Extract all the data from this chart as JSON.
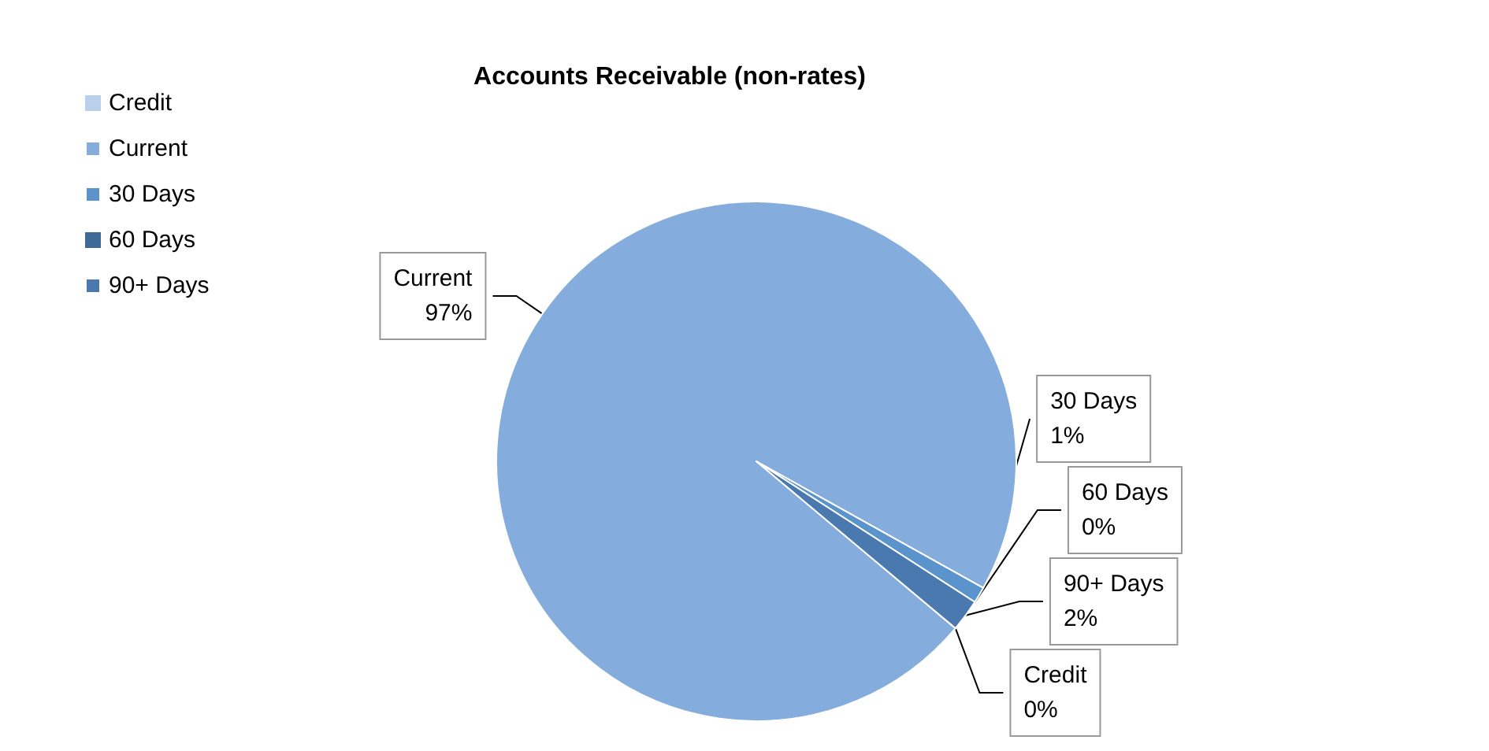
{
  "chart_data": {
    "type": "pie",
    "title": "Accounts Receivable (non-rates)",
    "categories": [
      "Credit",
      "Current",
      "30 Days",
      "60 Days",
      "90+ Days"
    ],
    "values": [
      0,
      97,
      1,
      0,
      2
    ],
    "value_labels": [
      "0%",
      "97%",
      "1%",
      "0%",
      "2%"
    ],
    "colors": [
      "#b9d0ec",
      "#84acdc",
      "#5b93cd",
      "#3f6a98",
      "#4a79b0"
    ],
    "legend": "top left"
  }
}
